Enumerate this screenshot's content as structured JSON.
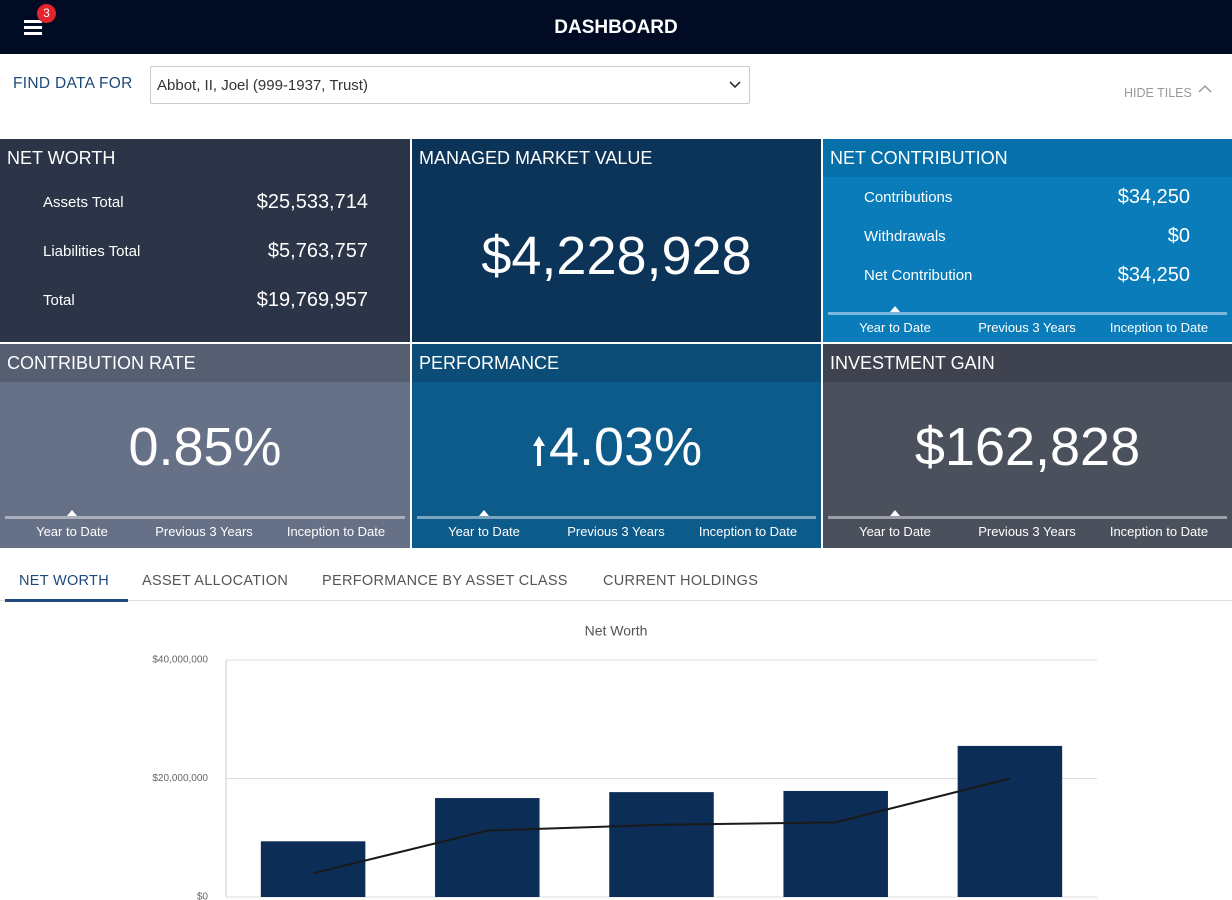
{
  "header": {
    "title": "DASHBOARD",
    "badge": "3"
  },
  "filter": {
    "label": "FIND DATA FOR",
    "selected": "Abbot, II, Joel (999-1937, Trust)",
    "toggle": "HIDE TILES"
  },
  "tiles": [
    {
      "title": "NET WORTH",
      "rows": [
        {
          "label": "Assets Total",
          "value": "$25,533,714"
        },
        {
          "label": "Liabilities Total",
          "value": "$5,763,757"
        },
        {
          "label": "Total",
          "value": "$19,769,957"
        }
      ]
    },
    {
      "title": "MANAGED MARKET VALUE",
      "value": "$4,228,928"
    },
    {
      "title": "NET CONTRIBUTION",
      "rows": [
        {
          "label": "Contributions",
          "value": "$34,250"
        },
        {
          "label": "Withdrawals",
          "value": "$0"
        },
        {
          "label": "Net Contribution",
          "value": "$34,250"
        }
      ],
      "periods": [
        "Year to Date",
        "Previous 3 Years",
        "Inception to Date"
      ]
    },
    {
      "title": "CONTRIBUTION RATE",
      "value": "0.85%",
      "periods": [
        "Year to Date",
        "Previous 3 Years",
        "Inception to Date"
      ]
    },
    {
      "title": "PERFORMANCE",
      "value": "4.03%",
      "periods": [
        "Year to Date",
        "Previous 3 Years",
        "Inception to Date"
      ]
    },
    {
      "title": "INVESTMENT GAIN",
      "value": "$162,828",
      "periods": [
        "Year to Date",
        "Previous 3 Years",
        "Inception to Date"
      ]
    }
  ],
  "tabs": [
    "NET WORTH",
    "ASSET ALLOCATION",
    "PERFORMANCE BY ASSET CLASS",
    "CURRENT HOLDINGS"
  ],
  "chart_data": {
    "type": "bar",
    "title": "Net Worth",
    "categories": [
      null,
      null,
      null,
      null,
      null
    ],
    "series": [
      {
        "type": "bar",
        "color": "#0c2d55",
        "values": [
          9400000,
          16700000,
          17700000,
          17900000,
          25500000
        ]
      },
      {
        "type": "line",
        "color": "#1a1a1a",
        "values": [
          4000000,
          11200000,
          12200000,
          12600000,
          20000000
        ]
      }
    ],
    "ylim": [
      0,
      40000000
    ],
    "yticks": [
      {
        "value": 0,
        "label": "$0"
      },
      {
        "value": 20000000,
        "label": "$20,000,000"
      },
      {
        "value": 40000000,
        "label": "$40,000,000"
      }
    ],
    "grid": true
  }
}
